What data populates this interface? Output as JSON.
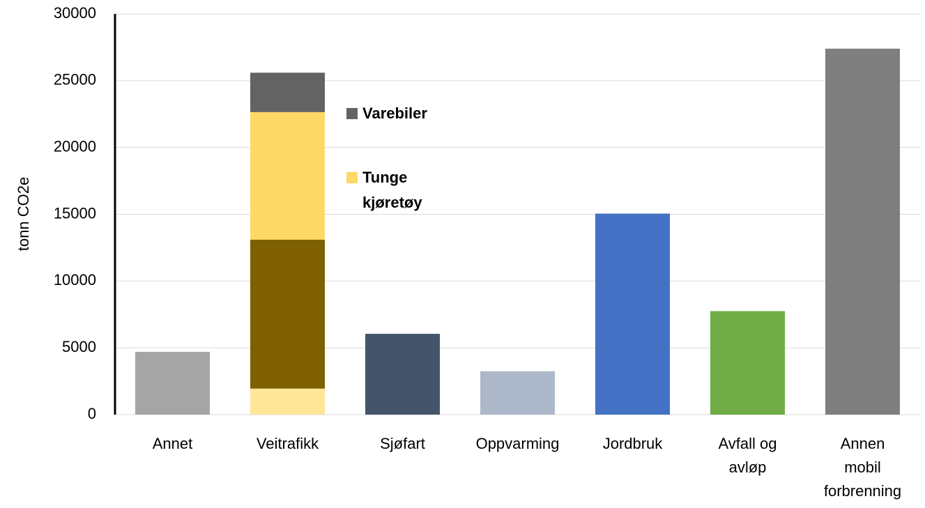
{
  "chart_data": {
    "type": "stacked_bar",
    "y_label": "tonn CO2e",
    "categories": [
      "Annet",
      "Veitrafikk",
      "Sjøfart",
      "Oppvarming",
      "Jordbruk",
      "Avfall og avløp",
      "Annen mobil forbrenning"
    ],
    "series": [
      {
        "colors": [
          "#a5a5a5",
          "#ffe699",
          "#44546a",
          "#adb9ca",
          "#4472c4",
          "#70ad47",
          "#7f7f7f"
        ],
        "values": [
          4700,
          1950,
          6050,
          3250,
          15050,
          7750,
          27400
        ]
      },
      {
        "color": "#7f6000",
        "values": [
          null,
          11150,
          null,
          null,
          null,
          null,
          null
        ]
      },
      {
        "name": "Tunge kjøretøy",
        "color": "#ffd966",
        "values": [
          null,
          9550,
          null,
          null,
          null,
          null,
          null
        ]
      },
      {
        "name": "Varebiler",
        "color": "#636363",
        "values": [
          null,
          2950,
          null,
          null,
          null,
          null,
          null
        ]
      }
    ],
    "ylim": [
      0,
      30000
    ],
    "yticks": [
      0,
      5000,
      10000,
      15000,
      20000,
      25000,
      30000
    ],
    "grid": true
  }
}
